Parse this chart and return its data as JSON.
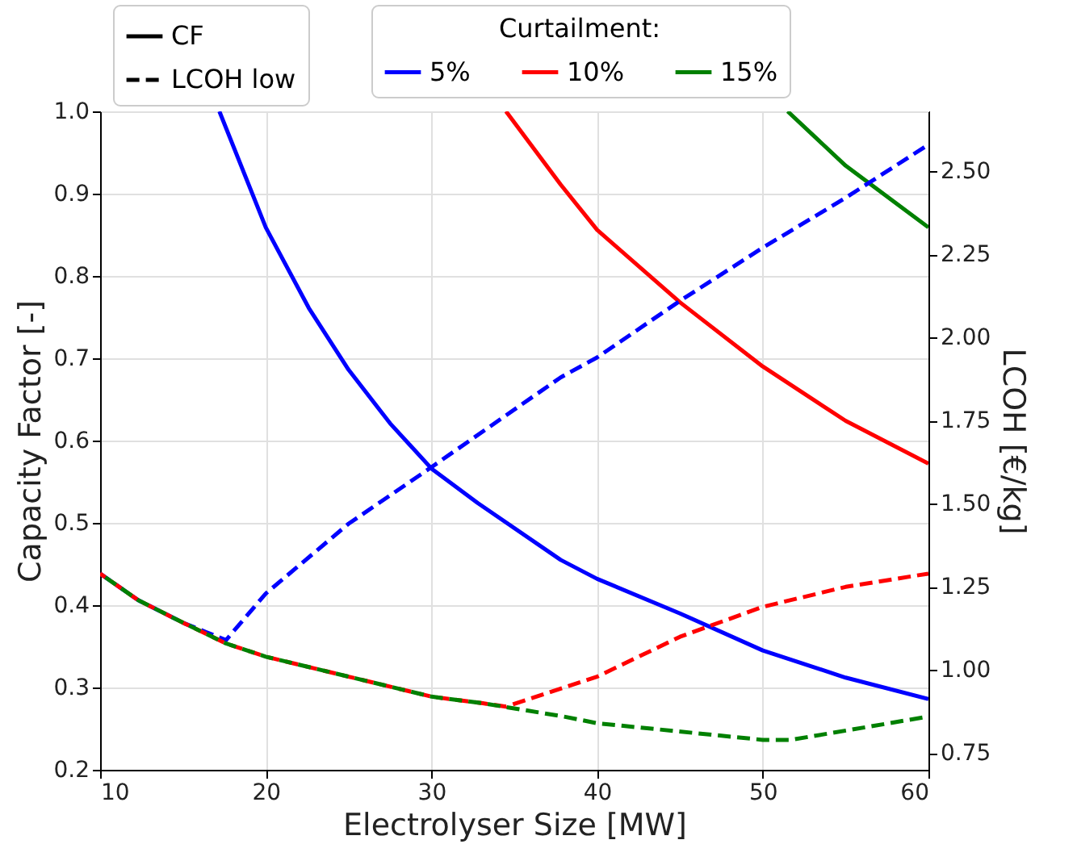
{
  "chart_data": {
    "type": "line",
    "xlabel": "Electrolyser Size [MW]",
    "ylabel": "Capacity Factor [-]",
    "y2label": "LCOH [€/kg]",
    "legend_title": "Curtailment:",
    "annotations": [
      "CF",
      "LCOH low"
    ],
    "xlim": [
      10,
      60
    ],
    "xticks": [
      10,
      20,
      30,
      40,
      50,
      60
    ],
    "ylim": [
      0.2,
      1.0
    ],
    "yticks": [
      0.2,
      0.3,
      0.4,
      0.5,
      0.6,
      0.7,
      0.8,
      0.9,
      {
        "value": 1.0,
        "label": "1.0"
      }
    ],
    "y2lim": [
      0.7,
      2.68
    ],
    "y2ticks": [
      0.75,
      {
        "value": 1.0,
        "label": "1.00"
      },
      1.25,
      {
        "value": 1.5,
        "label": "1.50"
      },
      1.75,
      {
        "value": 2.0,
        "label": "2.00"
      },
      2.25,
      {
        "value": 2.5,
        "label": "2.50"
      }
    ],
    "grid": true,
    "legend": "top",
    "series": [
      {
        "name": "5%",
        "color": "#0000ff",
        "line_style": "solid",
        "x": [
          17.2,
          20,
          22.6,
          25,
          27.5,
          30,
          32.8,
          37.8,
          40,
          45,
          50,
          55,
          60
        ],
        "values": [
          1.0,
          0.859,
          0.761,
          0.686,
          0.621,
          0.566,
          0.524,
          0.455,
          0.432,
          0.39,
          0.345,
          0.312,
          0.286
        ]
      },
      {
        "name": "10%",
        "color": "#ff0000",
        "line_style": "solid",
        "x": [
          34.5,
          37.8,
          40,
          45,
          50,
          55,
          60
        ],
        "values": [
          1.0,
          0.911,
          0.856,
          0.768,
          0.69,
          0.624,
          0.572
        ]
      },
      {
        "name": "15%",
        "color": "#008000",
        "line_style": "solid",
        "x": [
          51.5,
          55,
          60
        ],
        "values": [
          1.0,
          0.934,
          0.859
        ]
      },
      {
        "color": "#0000ff",
        "line_style": "dashed",
        "axis": "y2",
        "x": [
          10,
          12.3,
          15.1,
          17.6,
          20,
          25,
          30,
          37.8,
          40,
          45,
          50,
          55,
          60
        ],
        "values": [
          1.29,
          1.21,
          1.14,
          1.09,
          1.23,
          1.44,
          1.61,
          1.88,
          1.94,
          2.11,
          2.27,
          2.42,
          2.58
        ]
      },
      {
        "color": "#ff0000",
        "line_style": "dashed",
        "axis": "y2",
        "x": [
          10,
          12.3,
          15.1,
          17.6,
          20,
          25,
          30,
          33.1,
          34.5,
          40,
          45,
          50,
          55,
          60
        ],
        "values": [
          1.29,
          1.21,
          1.14,
          1.08,
          1.04,
          0.98,
          0.92,
          0.9,
          0.89,
          0.98,
          1.1,
          1.19,
          1.25,
          1.29
        ]
      },
      {
        "color": "#008000",
        "line_style": "dashed",
        "axis": "y2",
        "x": [
          10,
          12.3,
          15.1,
          17.6,
          20,
          25,
          30,
          33.1,
          38,
          40,
          50,
          51.7,
          60
        ],
        "values": [
          1.29,
          1.21,
          1.14,
          1.08,
          1.04,
          0.98,
          0.92,
          0.9,
          0.86,
          0.84,
          0.79,
          0.79,
          0.86
        ]
      }
    ]
  }
}
